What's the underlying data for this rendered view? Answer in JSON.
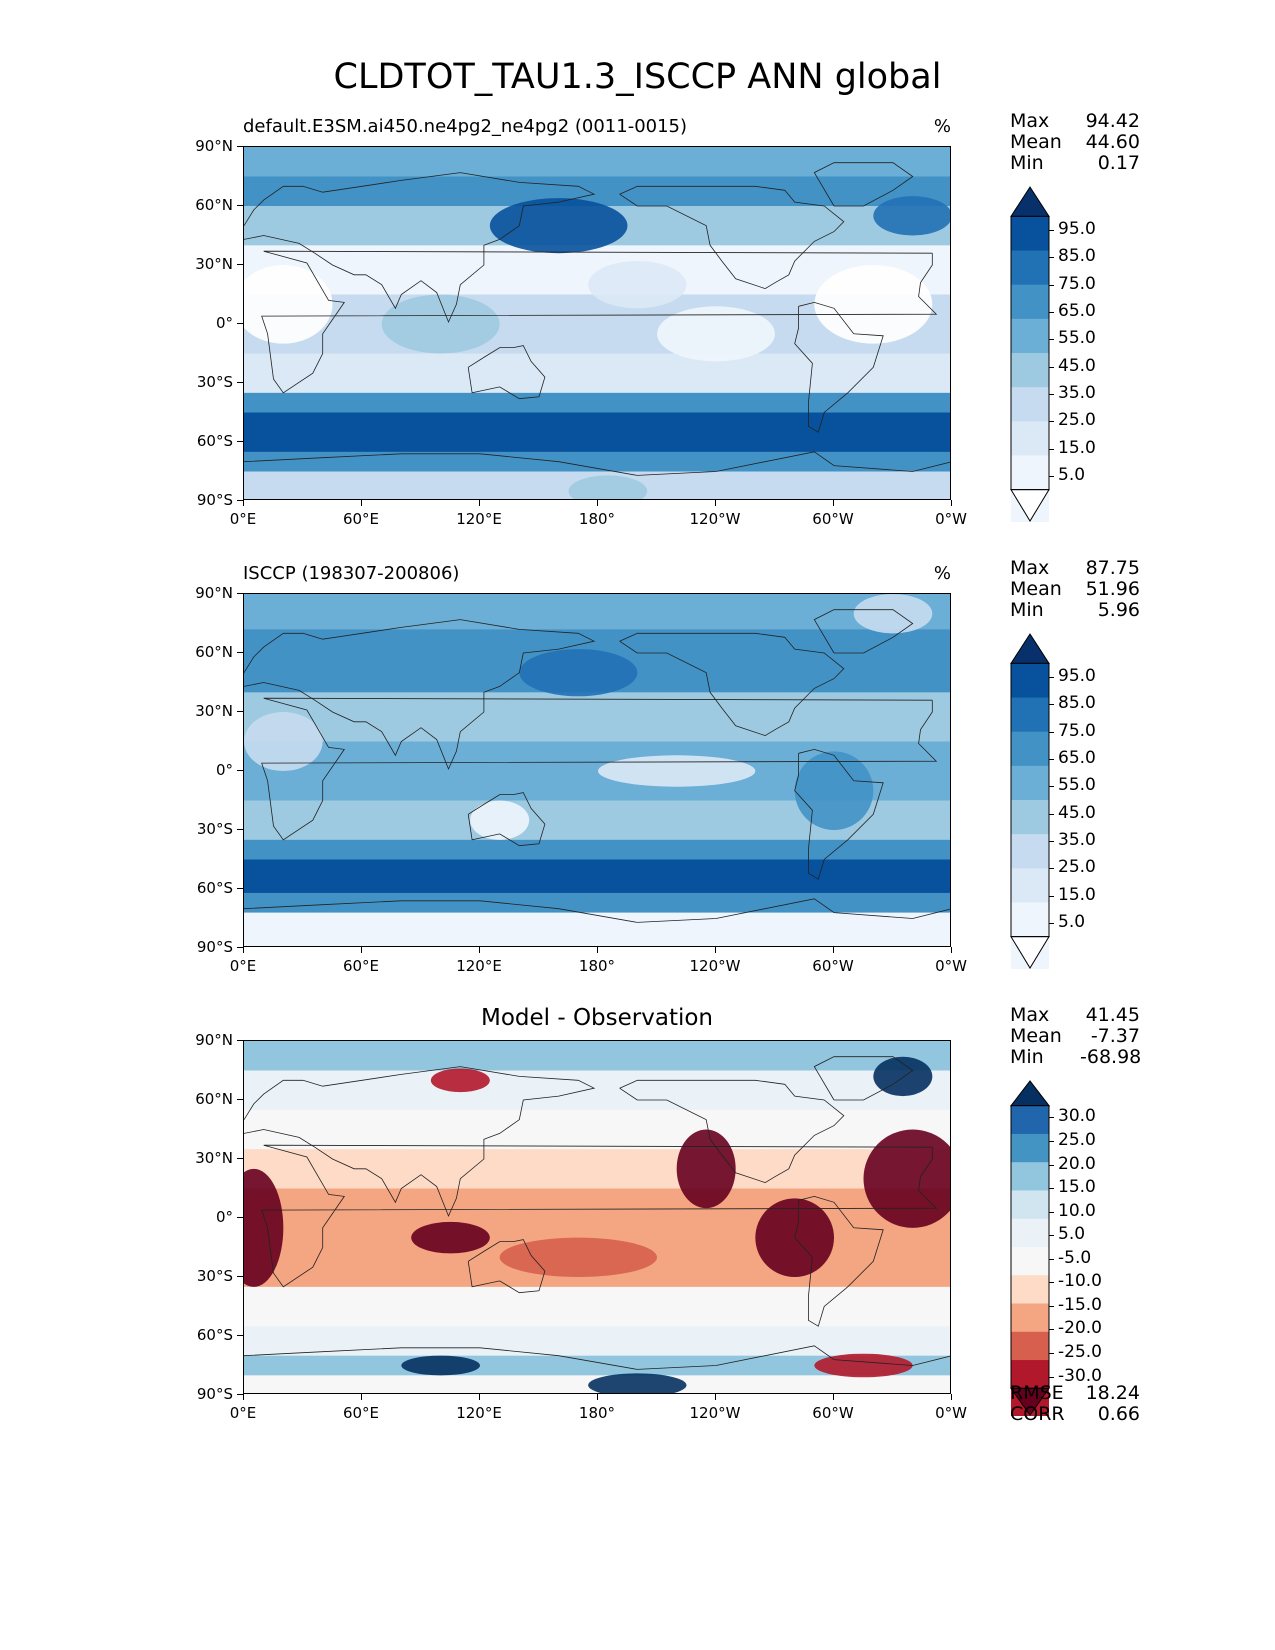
{
  "title": "CLDTOT_TAU1.3_ISCCP ANN global",
  "x_ticks": [
    "0°E",
    "60°E",
    "120°E",
    "180°",
    "120°W",
    "60°W",
    "0°W"
  ],
  "y_ticks": [
    "90°N",
    "60°N",
    "30°N",
    "0°",
    "30°S",
    "60°S",
    "90°S"
  ],
  "panels": [
    {
      "left_title": "default.E3SM.ai450.ne4pg2_ne4pg2 (0011-0015)",
      "center_title": "",
      "unit": "%",
      "stats": [
        {
          "label": "Max",
          "value": "94.42"
        },
        {
          "label": "Mean",
          "value": "44.60"
        },
        {
          "label": "Min",
          "value": "0.17"
        }
      ],
      "colorbar": {
        "labels": [
          "95.0",
          "85.0",
          "75.0",
          "65.0",
          "55.0",
          "45.0",
          "35.0",
          "25.0",
          "15.0",
          "5.0"
        ],
        "colors": [
          "#08306b",
          "#08519c",
          "#2171b5",
          "#4292c6",
          "#6baed6",
          "#9ecae1",
          "#c6dbef",
          "#dbe9f6",
          "#eef5fc",
          "#ffffff"
        ]
      },
      "footer_stats": []
    },
    {
      "left_title": "ISCCP (198307-200806)",
      "center_title": "",
      "unit": "%",
      "stats": [
        {
          "label": "Max",
          "value": "87.75"
        },
        {
          "label": "Mean",
          "value": "51.96"
        },
        {
          "label": "Min",
          "value": "5.96"
        }
      ],
      "colorbar": {
        "labels": [
          "95.0",
          "85.0",
          "75.0",
          "65.0",
          "55.0",
          "45.0",
          "35.0",
          "25.0",
          "15.0",
          "5.0"
        ],
        "colors": [
          "#08306b",
          "#08519c",
          "#2171b5",
          "#4292c6",
          "#6baed6",
          "#9ecae1",
          "#c6dbef",
          "#dbe9f6",
          "#eef5fc",
          "#ffffff"
        ]
      },
      "footer_stats": []
    },
    {
      "left_title": "",
      "center_title": "Model - Observation",
      "unit": "",
      "stats": [
        {
          "label": "Max",
          "value": "41.45"
        },
        {
          "label": "Mean",
          "value": "-7.37"
        },
        {
          "label": "Min",
          "value": "-68.98"
        }
      ],
      "colorbar": {
        "labels": [
          "30.0",
          "25.0",
          "20.0",
          "15.0",
          "10.0",
          "5.0",
          "-5.0",
          "-10.0",
          "-15.0",
          "-20.0",
          "-25.0",
          "-30.0"
        ],
        "colors": [
          "#053061",
          "#2166ac",
          "#4393c3",
          "#92c5de",
          "#d1e5f0",
          "#eaf2f7",
          "#f7f7f7",
          "#fddbc7",
          "#f4a582",
          "#d6604d",
          "#b2182b",
          "#67001f"
        ]
      },
      "footer_stats": [
        {
          "label": "RMSE",
          "value": "18.24"
        },
        {
          "label": "CORR",
          "value": "0.66"
        }
      ]
    }
  ]
}
